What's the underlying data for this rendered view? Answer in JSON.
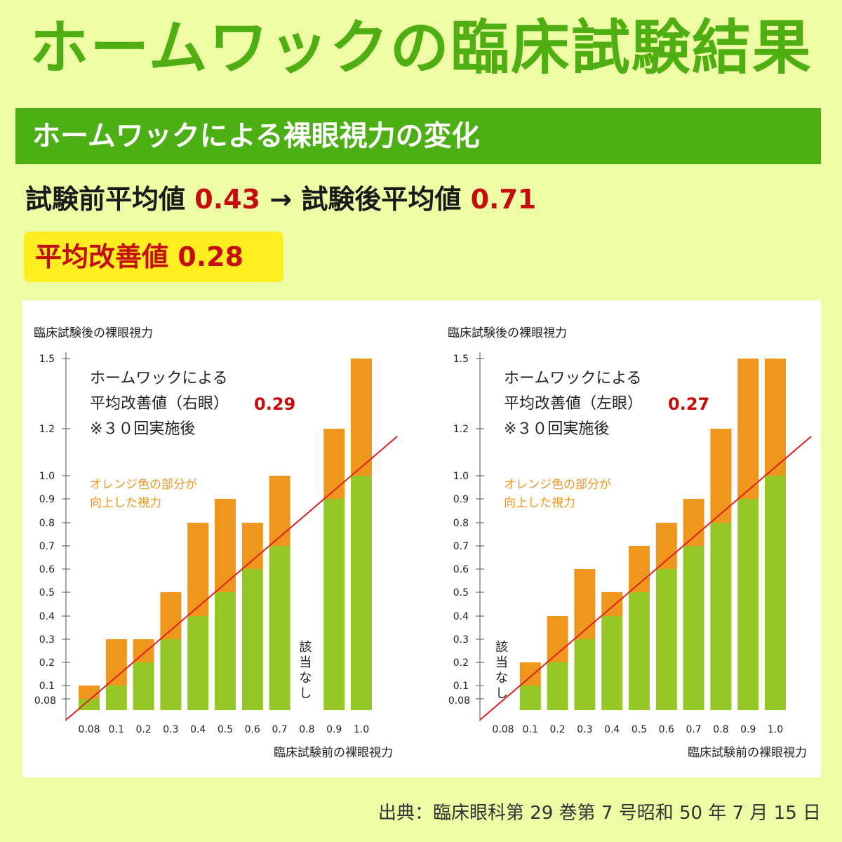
{
  "title": "ホームワックの臨床試験結果",
  "section_title": "ホームワックによる裸眼視力の変化",
  "summary": {
    "before_label": "試験前平均値",
    "before_value": "0.43",
    "arrow": "→",
    "after_label": "試験後平均値",
    "after_value": "0.71"
  },
  "improvement": {
    "label": "平均改善値",
    "value": "0.28"
  },
  "source": "出典：臨床眼科第 29 巻第 7 号昭和 50 年 7 月 15 日",
  "colors": {
    "green_bar": "#95c826",
    "orange_bar": "#ef961d",
    "diagonal": "#e0201d",
    "title_green": "#4fae12",
    "accent_red": "#c40d0d"
  },
  "chart_data": [
    {
      "type": "bar",
      "ylabel": "臨床試験後の裸眼視力",
      "xlabel": "臨床試験前の裸眼視力",
      "y_ticks": [
        "0.08",
        "0.1",
        "0.2",
        "0.3",
        "0.4",
        "0.5",
        "0.6",
        "0.7",
        "0.8",
        "0.9",
        "1.0",
        "1.2",
        "1.5"
      ],
      "categories": [
        "0.08",
        "0.1",
        "0.2",
        "0.3",
        "0.4",
        "0.5",
        "0.6",
        "0.7",
        "0.8",
        "0.9",
        "1.0"
      ],
      "series": [
        {
          "name": "臨床試験前の裸眼視力",
          "values": [
            0.08,
            0.1,
            0.2,
            0.3,
            0.4,
            0.5,
            0.6,
            0.7,
            null,
            0.9,
            1.0
          ]
        },
        {
          "name": "臨床試験後の裸眼視力",
          "values": [
            0.1,
            0.3,
            0.3,
            0.5,
            0.8,
            0.9,
            0.8,
            1.0,
            null,
            1.2,
            1.5
          ]
        }
      ],
      "annotation": {
        "line1": "ホームワックによる",
        "line2": "平均改善値（右眼）",
        "value": "0.29",
        "line3": "※３０回実施後"
      },
      "orange_note": [
        "オレンジ色の部分が",
        "向上した視力"
      ],
      "na_label": "該当なし",
      "na_category": "0.8"
    },
    {
      "type": "bar",
      "ylabel": "臨床試験後の裸眼視力",
      "xlabel": "臨床試験前の裸眼視力",
      "y_ticks": [
        "0.08",
        "0.1",
        "0.2",
        "0.3",
        "0.4",
        "0.5",
        "0.6",
        "0.7",
        "0.8",
        "0.9",
        "1.0",
        "1.2",
        "1.5"
      ],
      "categories": [
        "0.08",
        "0.1",
        "0.2",
        "0.3",
        "0.4",
        "0.5",
        "0.6",
        "0.7",
        "0.8",
        "0.9",
        "1.0"
      ],
      "series": [
        {
          "name": "臨床試験前の裸眼視力",
          "values": [
            null,
            0.1,
            0.2,
            0.3,
            0.4,
            0.5,
            0.6,
            0.7,
            0.8,
            0.9,
            1.0
          ]
        },
        {
          "name": "臨床試験後の裸眼視力",
          "values": [
            null,
            0.2,
            0.4,
            0.6,
            0.5,
            0.7,
            0.8,
            0.9,
            1.2,
            1.5,
            1.5
          ]
        }
      ],
      "annotation": {
        "line1": "ホームワックによる",
        "line2": "平均改善値（左眼）",
        "value": "0.27",
        "line3": "※３０回実施後"
      },
      "orange_note": [
        "オレンジ色の部分が",
        "向上した視力"
      ],
      "na_label": "該当なし",
      "na_category": "0.08"
    }
  ]
}
